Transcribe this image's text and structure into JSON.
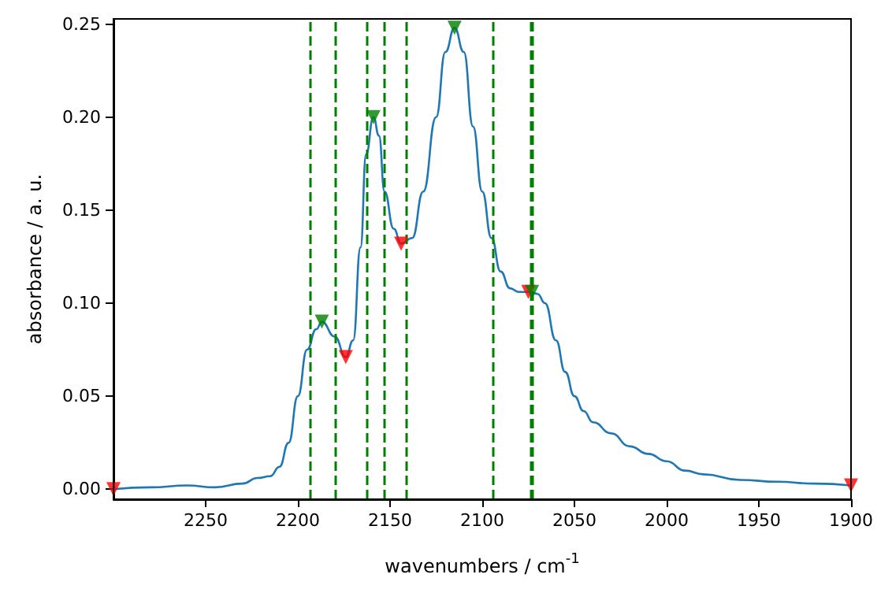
{
  "chart_data": {
    "type": "line",
    "xlabel": "wavenumbers / cm$^{-1}$",
    "ylabel": "absorbance / a. u.",
    "xlim": [
      2300,
      1900
    ],
    "xticks": [
      2250,
      2200,
      2150,
      2100,
      2050,
      2000,
      1950,
      1900
    ],
    "ylim": [
      -0.0054,
      0.2528
    ],
    "yticks": [
      {
        "value": 0,
        "label": "0.00"
      },
      {
        "value": 0.05,
        "label": "0.05"
      },
      {
        "value": 0.1,
        "label": "0.10"
      },
      {
        "value": 0.15,
        "label": "0.15"
      },
      {
        "value": 0.2,
        "label": "0.20"
      },
      {
        "value": 0.25,
        "label": "0.25"
      }
    ],
    "grid": false,
    "series": [
      {
        "color": "#1f77b4",
        "marker": "none",
        "line_style": "solid",
        "x": [
          2300,
          2280,
          2260,
          2245,
          2230,
          2222,
          2215,
          2210,
          2205,
          2200,
          2195,
          2190,
          2187,
          2180,
          2174,
          2170,
          2166,
          2163,
          2159,
          2156,
          2153,
          2148,
          2144,
          2138,
          2132,
          2125,
          2120,
          2115,
          2110,
          2105,
          2100,
          2095,
          2090,
          2085,
          2080,
          2074,
          2070,
          2066,
          2060,
          2055,
          2050,
          2045,
          2040,
          2030,
          2020,
          2010,
          2000,
          1990,
          1980,
          1960,
          1940,
          1920,
          1900
        ],
        "values": [
          0,
          0.001,
          0.002,
          0.001,
          0.003,
          0.006,
          0.007,
          0.012,
          0.025,
          0.05,
          0.075,
          0.086,
          0.09,
          0.082,
          0.071,
          0.08,
          0.13,
          0.18,
          0.2,
          0.19,
          0.16,
          0.14,
          0.132,
          0.135,
          0.16,
          0.2,
          0.235,
          0.248,
          0.235,
          0.195,
          0.16,
          0.135,
          0.117,
          0.108,
          0.106,
          0.106,
          0.105,
          0.1,
          0.08,
          0.063,
          0.05,
          0.042,
          0.036,
          0.03,
          0.023,
          0.019,
          0.015,
          0.01,
          0.008,
          0.005,
          0.004,
          0.003,
          0.002
        ]
      },
      {
        "type": "scatter",
        "color": "#ff0000",
        "marker": "triangle",
        "x": [
          2300,
          2174,
          2144,
          2075,
          1900
        ],
        "values": [
          0,
          0.071,
          0.132,
          0.106,
          0.002
        ]
      },
      {
        "type": "scatter",
        "color": "#008000",
        "marker": "triangle",
        "x": [
          2187,
          2159,
          2115,
          2073
        ],
        "values": [
          0.09,
          0.2,
          0.248,
          0.106
        ]
      }
    ],
    "ref_lines": [
      {
        "axis": "x",
        "value": 2193,
        "color": "#008000",
        "line_style": "dashed"
      },
      {
        "axis": "x",
        "value": 2180,
        "color": "#008000",
        "line_style": "dashed"
      },
      {
        "axis": "x",
        "value": 2163,
        "color": "#008000",
        "line_style": "dashed"
      },
      {
        "axis": "x",
        "value": 2153,
        "color": "#008000",
        "line_style": "dashed"
      },
      {
        "axis": "x",
        "value": 2141,
        "color": "#008000",
        "line_style": "dashed"
      },
      {
        "axis": "x",
        "value": 2094,
        "color": "#008000",
        "line_style": "dashed"
      },
      {
        "axis": "x",
        "value": 2074,
        "color": "#008000",
        "line_style": "dashed"
      },
      {
        "axis": "x",
        "value": 2073,
        "color": "#008000",
        "line_style": "dashed"
      }
    ]
  }
}
